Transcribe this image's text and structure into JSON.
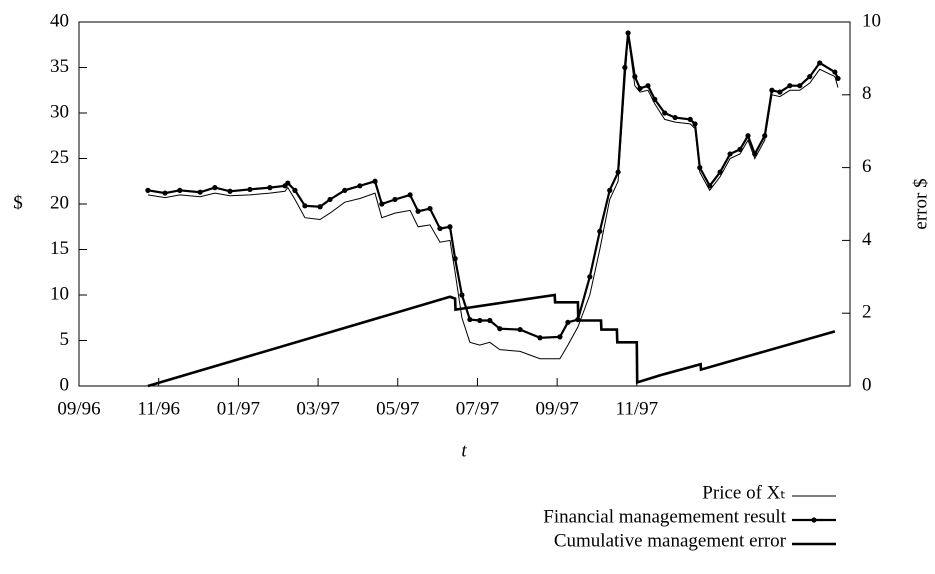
{
  "chart_data": {
    "type": "line",
    "xlabel": "t",
    "ylabel": "$",
    "y2label": "error $",
    "xlim": [
      0,
      19.35
    ],
    "xticks": [
      {
        "value": 0,
        "label": "09/96"
      },
      {
        "value": 2,
        "label": "11/96"
      },
      {
        "value": 4,
        "label": "01/97"
      },
      {
        "value": 6,
        "label": "03/97"
      },
      {
        "value": 8,
        "label": "05/97"
      },
      {
        "value": 10,
        "label": "07/97"
      },
      {
        "value": 12,
        "label": "09/97"
      },
      {
        "value": 14,
        "label": "11/97"
      }
    ],
    "ylim": [
      0,
      40
    ],
    "yticks": [
      0,
      5,
      10,
      15,
      20,
      25,
      30,
      35,
      40
    ],
    "y2lim": [
      0,
      10
    ],
    "y2ticks": [
      0,
      2,
      4,
      6,
      8,
      10
    ],
    "legend": "bottom-right",
    "series": [
      {
        "name": "Price of Xₜ",
        "color": "#000000",
        "style": "thin",
        "x": [
          1.73,
          2.16,
          2.53,
          3.04,
          3.41,
          3.79,
          4.29,
          4.79,
          5.17,
          5.24,
          5.42,
          5.67,
          6.05,
          6.3,
          6.67,
          7.05,
          7.43,
          7.6,
          7.93,
          8.31,
          8.51,
          8.81,
          9.06,
          9.31,
          9.44,
          9.61,
          9.81,
          10.06,
          10.31,
          10.56,
          11.07,
          11.57,
          12.07,
          12.27,
          12.52,
          12.82,
          13.07,
          13.32,
          13.53,
          13.7,
          13.78,
          13.95,
          14.08,
          14.28,
          14.45,
          14.7,
          14.96,
          15.34,
          15.46,
          15.58,
          15.83,
          16.09,
          16.34,
          16.59,
          16.79,
          16.96,
          17.21,
          17.39,
          17.59,
          17.84,
          18.09,
          18.34,
          18.59,
          18.97,
          19.05
        ],
        "values": [
          21.0,
          20.7,
          21.0,
          20.8,
          21.2,
          20.9,
          21.0,
          21.2,
          21.4,
          21.8,
          20.5,
          18.5,
          18.3,
          19.0,
          20.2,
          20.6,
          21.2,
          18.5,
          19.0,
          19.3,
          17.5,
          17.7,
          15.8,
          16.0,
          12.5,
          7.5,
          4.8,
          4.5,
          4.8,
          4.0,
          3.8,
          3.0,
          3.0,
          4.5,
          6.5,
          10,
          15,
          20.5,
          22.5,
          33.5,
          38.5,
          33,
          32.3,
          32.5,
          31,
          29.3,
          29,
          28.8,
          28.3,
          23.5,
          21.5,
          23,
          25,
          25.5,
          27,
          25,
          27,
          32,
          31.8,
          32.5,
          32.5,
          33.3,
          34.8,
          34,
          32.8
        ]
      },
      {
        "name": "Financial managemement result",
        "color": "#000000",
        "style": "dots",
        "x": [
          1.73,
          2.16,
          2.53,
          3.04,
          3.41,
          3.79,
          4.29,
          4.79,
          5.17,
          5.24,
          5.42,
          5.67,
          6.05,
          6.3,
          6.67,
          7.05,
          7.43,
          7.6,
          7.93,
          8.31,
          8.51,
          8.81,
          9.06,
          9.31,
          9.44,
          9.61,
          9.81,
          10.06,
          10.31,
          10.56,
          11.07,
          11.57,
          12.07,
          12.27,
          12.52,
          12.82,
          13.07,
          13.32,
          13.53,
          13.7,
          13.78,
          13.95,
          14.08,
          14.28,
          14.45,
          14.7,
          14.96,
          15.34,
          15.46,
          15.58,
          15.83,
          16.09,
          16.34,
          16.59,
          16.79,
          16.96,
          17.21,
          17.39,
          17.59,
          17.84,
          18.09,
          18.34,
          18.59,
          18.97,
          19.05
        ],
        "values": [
          21.5,
          21.2,
          21.5,
          21.3,
          21.8,
          21.4,
          21.6,
          21.8,
          22.0,
          22.3,
          21.5,
          19.8,
          19.7,
          20.5,
          21.5,
          22.0,
          22.5,
          20.0,
          20.5,
          21.0,
          19.2,
          19.5,
          17.3,
          17.5,
          14,
          10,
          7.3,
          7.2,
          7.2,
          6.3,
          6.2,
          5.3,
          5.4,
          7.0,
          7.3,
          12,
          17,
          21.5,
          23.5,
          35,
          38.8,
          34,
          32.7,
          33,
          31.5,
          30,
          29.5,
          29.3,
          28.8,
          24,
          22,
          23.5,
          25.5,
          26,
          27.5,
          25.5,
          27.5,
          32.5,
          32.3,
          33,
          33,
          34,
          35.5,
          34.5,
          33.8
        ]
      },
      {
        "name": "Cumulative management error",
        "color": "#000000",
        "style": "thick",
        "axis": "y2",
        "x": [
          1.73,
          9.31,
          9.44,
          9.45,
          11.94,
          11.95,
          12.52,
          12.53,
          13.1,
          13.11,
          13.5,
          13.51,
          14.0,
          14.01,
          14.6,
          15.6,
          15.61,
          18.97
        ],
        "values": [
          0,
          2.45,
          2.4,
          2.1,
          2.5,
          2.3,
          2.3,
          1.8,
          1.8,
          1.55,
          1.55,
          1.2,
          1.2,
          0.1,
          0.3,
          0.6,
          0.45,
          1.5
        ]
      }
    ]
  }
}
